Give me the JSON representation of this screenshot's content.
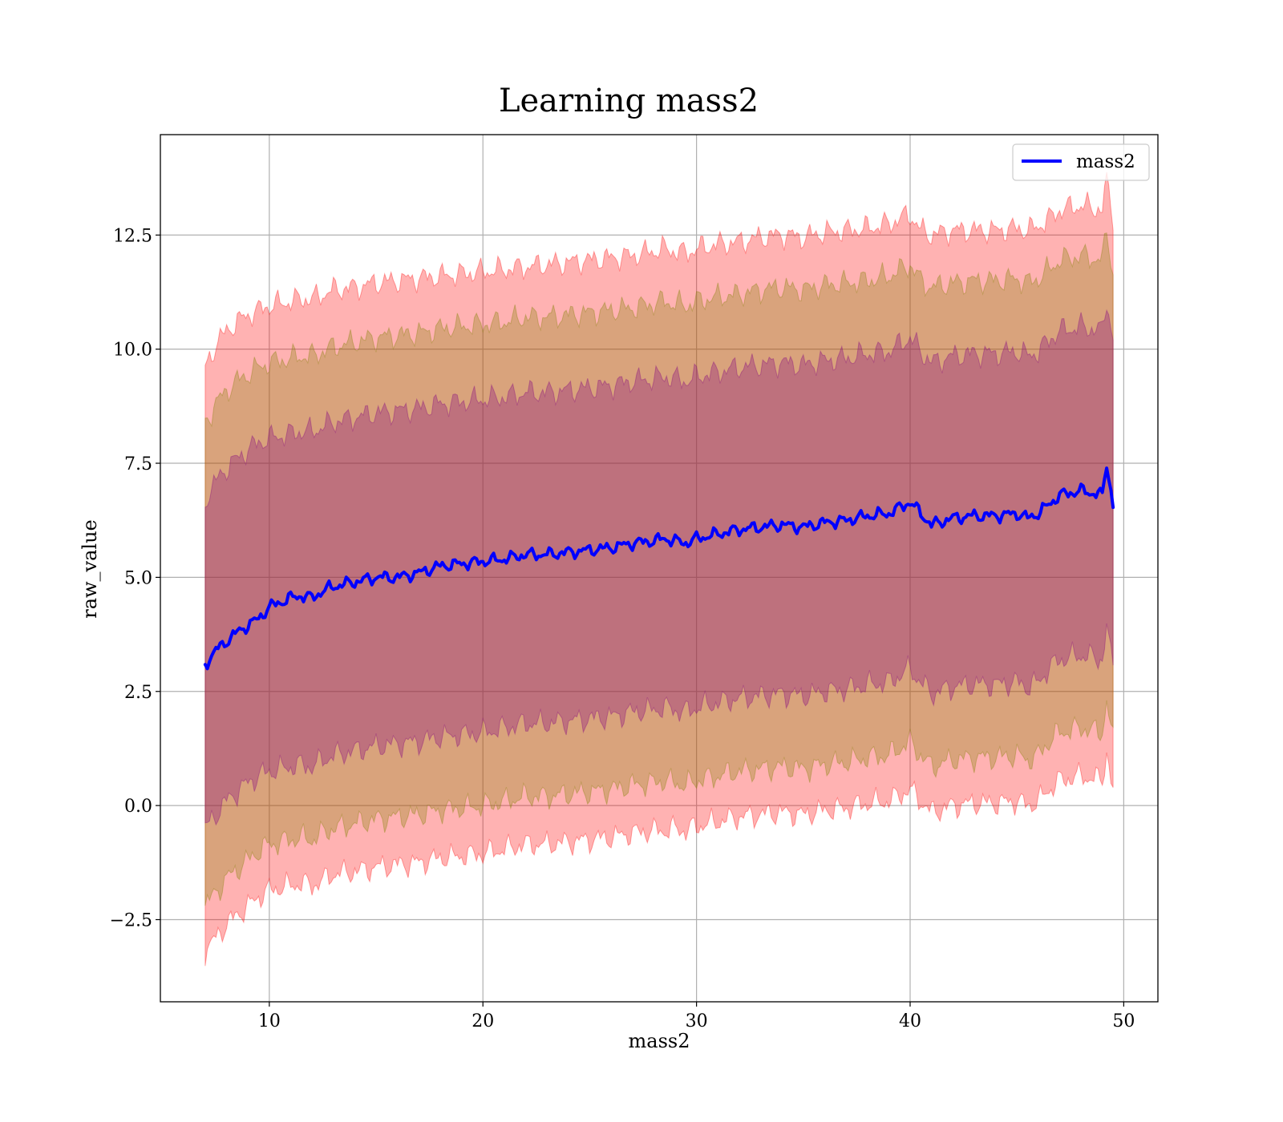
{
  "chart_data": {
    "type": "line",
    "title": "Learning mass2",
    "xlabel": "mass2",
    "ylabel": "raw_value",
    "xlim": [
      4.9,
      51.6
    ],
    "ylim": [
      -4.3,
      14.7
    ],
    "xticks": [
      10,
      20,
      30,
      40,
      50
    ],
    "yticks": [
      -2.5,
      0.0,
      2.5,
      5.0,
      7.5,
      10.0,
      12.5
    ],
    "xtick_labels": [
      "10",
      "20",
      "30",
      "40",
      "50"
    ],
    "ytick_labels": [
      "−2.5",
      "0.0",
      "2.5",
      "5.0",
      "7.5",
      "10.0",
      "12.5"
    ],
    "grid": true,
    "legend": {
      "position": "top-right",
      "entries": [
        "mass2"
      ]
    },
    "x_range": [
      7.0,
      49.5
    ],
    "series": [
      {
        "name": "mass2",
        "color": "#0000ff",
        "x": [
          7.0,
          7.5,
          8.0,
          8.5,
          9.0,
          9.5,
          10.0,
          10.5,
          11.0,
          11.5,
          12.0,
          12.5,
          13.0,
          14.0,
          15.0,
          16.0,
          17.0,
          18.0,
          19.0,
          20.0,
          21.0,
          22.0,
          23.0,
          24.0,
          25.0,
          26.0,
          27.0,
          28.0,
          28.5,
          29.0,
          29.5,
          30.0,
          31.0,
          32.0,
          33.0,
          34.0,
          35.0,
          36.0,
          37.0,
          38.0,
          39.0,
          40.0,
          40.5,
          41.0,
          42.0,
          43.0,
          44.0,
          45.0,
          45.5,
          46.0,
          46.5,
          47.0,
          48.0,
          48.5,
          49.0,
          49.2,
          49.5
        ],
        "y": [
          3.1,
          3.4,
          3.6,
          3.8,
          3.95,
          4.1,
          4.35,
          4.45,
          4.55,
          4.6,
          4.55,
          4.7,
          4.8,
          4.9,
          5.0,
          5.0,
          5.1,
          5.25,
          5.3,
          5.35,
          5.4,
          5.5,
          5.5,
          5.55,
          5.6,
          5.65,
          5.75,
          5.8,
          5.85,
          5.8,
          5.75,
          5.85,
          5.95,
          6.05,
          6.1,
          6.15,
          6.1,
          6.2,
          6.25,
          6.35,
          6.4,
          6.65,
          6.4,
          6.15,
          6.3,
          6.35,
          6.35,
          6.4,
          6.3,
          6.4,
          6.6,
          6.8,
          6.9,
          6.85,
          6.8,
          7.5,
          6.6
        ]
      }
    ],
    "bands": [
      {
        "color": "#ff0000",
        "opacity": 0.3,
        "upper": [
          9.6,
          10.1,
          10.4,
          10.6,
          10.75,
          10.85,
          10.95,
          11.0,
          11.05,
          11.1,
          11.1,
          11.2,
          11.3,
          11.35,
          11.45,
          11.5,
          11.55,
          11.6,
          11.65,
          11.7,
          11.75,
          11.8,
          11.85,
          11.9,
          11.95,
          12.0,
          12.05,
          12.15,
          12.2,
          12.15,
          12.1,
          12.2,
          12.3,
          12.35,
          12.45,
          12.5,
          12.45,
          12.55,
          12.6,
          12.65,
          12.75,
          12.95,
          12.6,
          12.5,
          12.6,
          12.6,
          12.6,
          12.65,
          12.6,
          12.7,
          12.85,
          13.05,
          13.15,
          13.1,
          13.05,
          13.7,
          12.9
        ],
        "lower": [
          -3.2,
          -2.9,
          -2.6,
          -2.4,
          -2.2,
          -2.0,
          -1.85,
          -1.8,
          -1.75,
          -1.7,
          -1.75,
          -1.65,
          -1.5,
          -1.45,
          -1.35,
          -1.3,
          -1.25,
          -1.15,
          -1.1,
          -1.05,
          -0.95,
          -0.85,
          -0.85,
          -0.8,
          -0.75,
          -0.7,
          -0.6,
          -0.55,
          -0.55,
          -0.5,
          -0.55,
          -0.45,
          -0.35,
          -0.25,
          -0.2,
          -0.15,
          -0.2,
          -0.1,
          -0.05,
          0.05,
          0.1,
          0.35,
          0.1,
          -0.15,
          0.0,
          0.05,
          0.05,
          0.1,
          0.0,
          0.1,
          0.35,
          0.55,
          0.65,
          0.6,
          0.55,
          1.2,
          0.3
        ]
      },
      {
        "color": "#808000",
        "opacity": 0.3,
        "upper": [
          8.4,
          8.8,
          9.1,
          9.3,
          9.45,
          9.6,
          9.7,
          9.75,
          9.8,
          9.85,
          9.85,
          9.95,
          10.05,
          10.15,
          10.25,
          10.3,
          10.35,
          10.45,
          10.5,
          10.55,
          10.6,
          10.7,
          10.7,
          10.75,
          10.8,
          10.85,
          10.9,
          11.0,
          11.05,
          11.0,
          10.95,
          11.05,
          11.15,
          11.2,
          11.3,
          11.35,
          11.3,
          11.4,
          11.45,
          11.5,
          11.6,
          11.85,
          11.5,
          11.35,
          11.45,
          11.5,
          11.5,
          11.55,
          11.45,
          11.55,
          11.75,
          11.95,
          12.05,
          12.0,
          11.95,
          12.6,
          11.7
        ],
        "lower": [
          -2.2,
          -1.9,
          -1.6,
          -1.4,
          -1.2,
          -1.0,
          -0.85,
          -0.8,
          -0.75,
          -0.7,
          -0.75,
          -0.6,
          -0.5,
          -0.4,
          -0.3,
          -0.25,
          -0.2,
          -0.1,
          -0.05,
          0.0,
          0.1,
          0.2,
          0.2,
          0.25,
          0.3,
          0.35,
          0.45,
          0.5,
          0.55,
          0.5,
          0.45,
          0.55,
          0.65,
          0.75,
          0.8,
          0.85,
          0.8,
          0.9,
          0.95,
          1.05,
          1.1,
          1.4,
          1.1,
          0.85,
          1.0,
          1.05,
          1.05,
          1.1,
          1.0,
          1.1,
          1.4,
          1.6,
          1.7,
          1.65,
          1.6,
          2.3,
          1.4
        ]
      },
      {
        "color": "#800080",
        "opacity": 0.3,
        "upper": [
          6.7,
          7.1,
          7.4,
          7.6,
          7.8,
          7.95,
          8.05,
          8.1,
          8.15,
          8.2,
          8.2,
          8.3,
          8.4,
          8.5,
          8.6,
          8.65,
          8.7,
          8.8,
          8.85,
          8.9,
          8.95,
          9.05,
          9.05,
          9.1,
          9.15,
          9.2,
          9.3,
          9.35,
          9.4,
          9.35,
          9.3,
          9.4,
          9.5,
          9.6,
          9.65,
          9.7,
          9.65,
          9.75,
          9.8,
          9.9,
          9.95,
          10.25,
          9.95,
          9.7,
          9.85,
          9.9,
          9.9,
          9.95,
          9.85,
          9.95,
          10.2,
          10.4,
          10.5,
          10.45,
          10.4,
          11.1,
          10.2
        ],
        "lower": [
          -0.5,
          -0.2,
          0.1,
          0.3,
          0.5,
          0.65,
          0.75,
          0.8,
          0.85,
          0.9,
          0.85,
          1.0,
          1.1,
          1.2,
          1.3,
          1.35,
          1.4,
          1.5,
          1.55,
          1.6,
          1.7,
          1.8,
          1.8,
          1.85,
          1.9,
          1.95,
          2.05,
          2.1,
          2.15,
          2.1,
          2.05,
          2.15,
          2.25,
          2.35,
          2.4,
          2.45,
          2.4,
          2.5,
          2.55,
          2.65,
          2.7,
          3.0,
          2.7,
          2.45,
          2.6,
          2.65,
          2.65,
          2.7,
          2.6,
          2.7,
          3.0,
          3.2,
          3.3,
          3.25,
          3.2,
          3.9,
          3.0
        ]
      }
    ]
  }
}
